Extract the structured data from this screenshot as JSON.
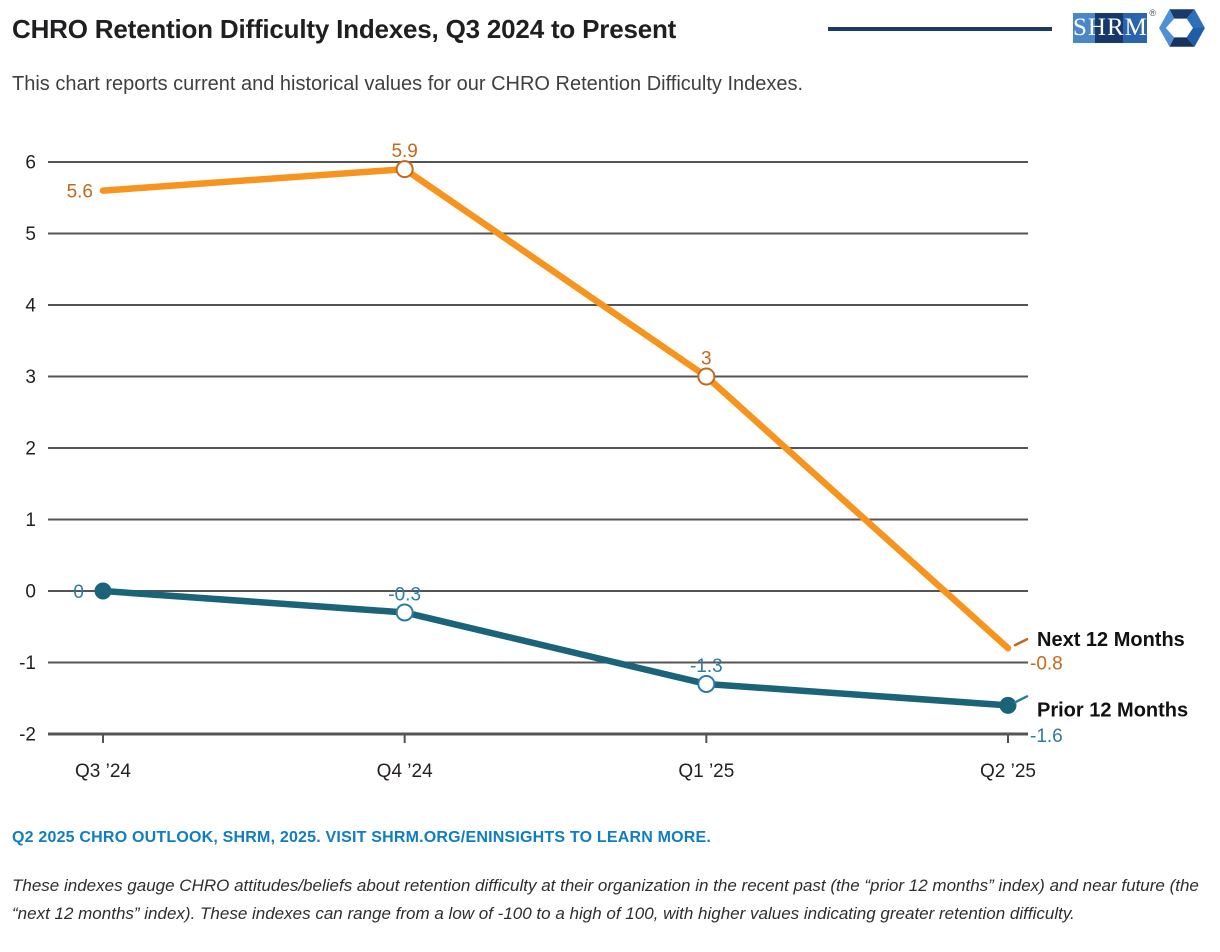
{
  "header": {
    "title": "CHRO Retention Difficulty Indexes, Q3 2024 to Present",
    "subtitle": "This chart reports current and historical values for our CHRO Retention Difficulty Indexes."
  },
  "logo": {
    "wordmark": "SHRM",
    "registered": "®"
  },
  "chart_data": {
    "type": "line",
    "title": "CHRO Retention Difficulty Indexes, Q3 2024 to Present",
    "categories": [
      "Q3 ’24",
      "Q4 ’24",
      "Q1 ’25",
      "Q2 ’25"
    ],
    "series": [
      {
        "name": "Next 12 Months",
        "values": [
          5.6,
          5.9,
          3,
          -0.8
        ],
        "labels": [
          "5.6",
          "5.9",
          "3",
          "-0.8"
        ],
        "line_color": "#F7941E",
        "label_color": "#C5681C",
        "markers": [
          "none",
          "ring",
          "ring",
          "none"
        ],
        "name_dy": -9,
        "value_dy": 15
      },
      {
        "name": "Prior 12 Months",
        "values": [
          0,
          -0.3,
          -1.3,
          -1.6
        ],
        "labels": [
          "0",
          "-0.3",
          "-1.3",
          "-1.6"
        ],
        "line_color": "#1A6378",
        "label_color": "#2E7CA3",
        "markers": [
          "dot",
          "ring",
          "ring",
          "dot"
        ],
        "name_dy": 4,
        "value_dy": 30
      }
    ],
    "ylim": [
      -2,
      6
    ],
    "yticks": [
      6,
      5,
      4,
      3,
      2,
      1,
      0,
      -1,
      -2
    ],
    "grid": "horizontal",
    "legend_position": "right-end-labels",
    "xlabel": "",
    "ylabel": "",
    "colors": {
      "gridline": "#545456",
      "axis_text": "#231F20",
      "series_name_text": "#111111"
    }
  },
  "footer": {
    "source": "Q2 2025 CHRO OUTLOOK, SHRM, 2025. VISIT SHRM.ORG/ENINSIGHTS TO LEARN MORE.",
    "description": "These indexes gauge CHRO attitudes/beliefs about retention difficulty at their organization in the recent past (the “prior 12 months” index) and near future (the “next 12 months” index). These indexes can range from a low of -100 to a high of 100, with higher values indicating greater retention difficulty."
  }
}
